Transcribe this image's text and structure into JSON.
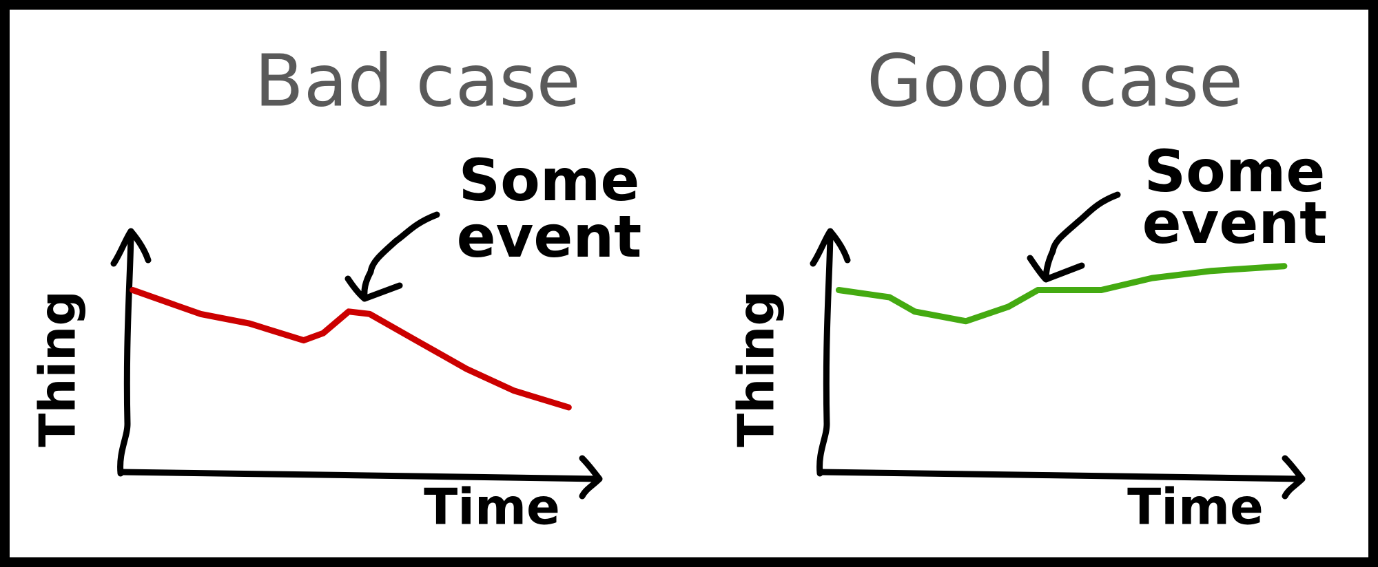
{
  "chart_data": [
    {
      "type": "line",
      "title": "Bad case",
      "x_label": "Time",
      "y_label": "Thing",
      "annotation": [
        "Some",
        "event"
      ],
      "x": [
        0.04,
        1.56,
        2.66,
        3.87,
        4.31,
        4.88,
        5.35,
        6.39,
        7.53,
        8.58,
        9.81
      ],
      "series": [
        {
          "color": "#cc0000",
          "values": [
            7.6,
            6.6,
            6.2,
            5.5,
            5.8,
            6.7,
            6.6,
            5.5,
            4.3,
            3.4,
            2.7
          ]
        }
      ],
      "xlim": [
        0,
        10.5
      ],
      "ylim": [
        0,
        10
      ]
    },
    {
      "type": "line",
      "title": "Good case",
      "x_label": "Time",
      "y_label": "Thing",
      "annotation": [
        "Some",
        "event"
      ],
      "x": [
        0.19,
        1.32,
        1.88,
        3.02,
        3.96,
        4.62,
        6.03,
        7.16,
        8.48,
        10.1
      ],
      "series": [
        {
          "color": "#44aa11",
          "values": [
            7.6,
            7.3,
            6.7,
            6.3,
            6.9,
            7.6,
            7.6,
            8.1,
            8.4,
            8.6
          ]
        }
      ],
      "xlim": [
        0,
        10.5
      ],
      "ylim": [
        0,
        10
      ]
    }
  ]
}
